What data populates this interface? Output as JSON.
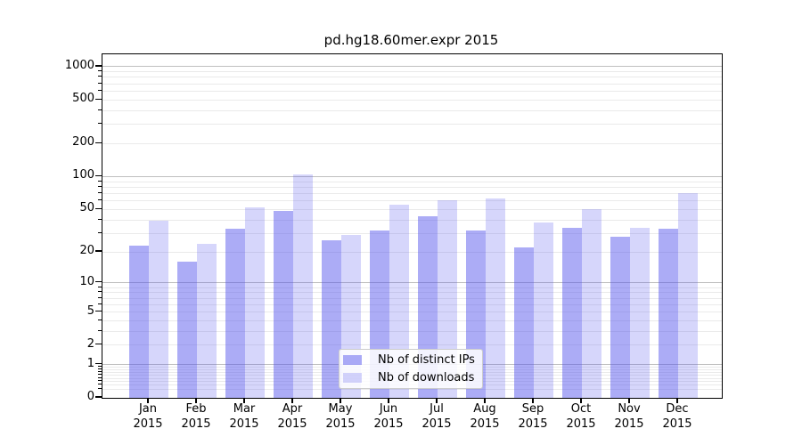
{
  "title": "pd.hg18.60mer.expr 2015",
  "chart_data": {
    "type": "bar",
    "title": "pd.hg18.60mer.expr 2015",
    "categories": [
      "Jan",
      "Feb",
      "Mar",
      "Apr",
      "May",
      "Jun",
      "Jul",
      "Aug",
      "Sep",
      "Oct",
      "Nov",
      "Dec"
    ],
    "category_year": "2015",
    "series": [
      {
        "name": "Nb of distinct IPs",
        "color": "rgba(82,82,237,0.48)",
        "values": [
          23,
          16,
          33,
          48,
          26,
          32,
          43,
          32,
          22,
          34,
          28,
          33
        ]
      },
      {
        "name": "Nb of downloads",
        "color": "rgba(82,82,237,0.24)",
        "values": [
          39,
          24,
          52,
          105,
          29,
          55,
          61,
          63,
          38,
          50,
          34,
          70
        ]
      }
    ],
    "yscale": "log10(1+x)",
    "ylim": [
      0,
      1300
    ],
    "y_tick_labels": [
      "1000",
      "500",
      "200",
      "100",
      "50",
      "20",
      "10",
      "5",
      "2",
      "1",
      "0"
    ],
    "y_tick_values": [
      1000,
      500,
      200,
      100,
      50,
      20,
      10,
      5,
      2,
      1,
      0
    ],
    "grid": true,
    "legend_position": "inside lower-center",
    "colors": {
      "major_grid": "#bfbfbf",
      "minor_grid": "#eaeaea",
      "spine": "#000000",
      "background": "#ffffff"
    }
  }
}
